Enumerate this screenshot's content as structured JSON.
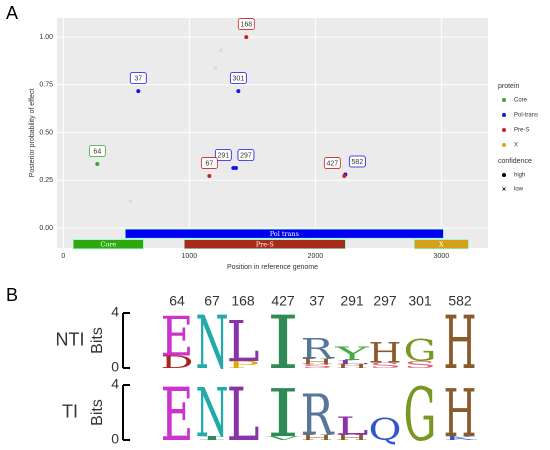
{
  "chart_data": [
    {
      "type": "scatter",
      "panel": "A",
      "xlabel": "Position in reference genome",
      "ylabel": "Posterior probability of effect",
      "xlim": [
        -50,
        3370
      ],
      "ylim": [
        -0.105,
        1.1
      ],
      "xticks": [
        0,
        1000,
        2000,
        3000
      ],
      "yticks": [
        {
          "value": 0,
          "label": "0.00"
        },
        0.25,
        {
          "value": 0.5,
          "label": "0.50"
        },
        0.75,
        {
          "value": 1,
          "label": "1.00"
        }
      ],
      "grid": true,
      "legend_title": "protein",
      "series": [
        {
          "name": "Core",
          "color": "#2fa82f",
          "x": [
            270
          ],
          "values": [
            0.335
          ],
          "labels": [
            "64"
          ],
          "confidence": [
            "high"
          ]
        },
        {
          "name": "Pol-trans",
          "color": "#1414e6",
          "x": [
            595,
            1389,
            1349,
            1370,
            2238,
            532,
            1250
          ],
          "values": [
            0.717,
            0.717,
            0.314,
            0.314,
            0.28,
            0.14,
            0.93
          ],
          "labels": [
            "37",
            "301",
            "291",
            "297",
            "582",
            null,
            null
          ],
          "confidence": [
            "high",
            "high",
            "high",
            "high",
            "high",
            "low",
            "low"
          ]
        },
        {
          "name": "Pre-S",
          "color": "#cc2222",
          "x": [
            1452,
            1159,
            2230,
            1206
          ],
          "values": [
            1.0,
            0.272,
            0.272,
            0.84
          ],
          "labels": [
            "168",
            "67",
            "427",
            null
          ],
          "confidence": [
            "high",
            "high",
            "high",
            "low"
          ]
        },
        {
          "name": "X",
          "color": "#daa520",
          "x": [],
          "values": [],
          "labels": [],
          "confidence": []
        }
      ],
      "confidence_legend": {
        "title": "confidence",
        "items": [
          "high",
          "low"
        ]
      },
      "genes": [
        {
          "name": "Pol trans",
          "start": 492,
          "end": 3016,
          "y": -0.03,
          "color": "#0000f0"
        },
        {
          "name": "Core",
          "start": 79,
          "end": 635,
          "y": -0.085,
          "color": "#2fa80f"
        },
        {
          "name": "Pre-S",
          "start": 960,
          "end": 2238,
          "y": -0.085,
          "color": "#a82a1a"
        },
        {
          "name": "X",
          "start": 2786,
          "end": 3214,
          "y": -0.085,
          "color": "#d4a017"
        }
      ]
    },
    {
      "type": "logo",
      "panel": "B",
      "categories": [
        "64",
        "67",
        "168",
        "427",
        "37",
        "291",
        "297",
        "301",
        "582"
      ],
      "category_colors": [
        "#44bb44",
        "#cc2222",
        "#cc2222",
        "#cc2222",
        "#1a3fcc",
        "#1a3fcc",
        "#1a3fcc",
        "#1a3fcc",
        "#1a3fcc"
      ],
      "ylabel": "Bits",
      "ylim": [
        0,
        4
      ],
      "yticks": [
        0,
        4
      ],
      "letter_colors": {
        "E": "#cc33cc",
        "D": "#aa2222",
        "N": "#22aaaa",
        "L": "#8833aa",
        "P": "#ddaa00",
        "I": "#2e8b57",
        "R": "#557799",
        "H": "#8b5a2b",
        "Y": "#44aa44",
        "S": "#dd6677",
        "G": "#779922",
        "Q": "#3355cc",
        "V": "#33aa66",
        "K": "#3355cc"
      },
      "rows": [
        {
          "name": "NTI",
          "columns": [
            [
              {
                "letter": "D",
                "bits": 0.9
              },
              {
                "letter": "E",
                "bits": 2.9
              }
            ],
            [
              {
                "letter": "N",
                "bits": 3.9
              }
            ],
            [
              {
                "letter": "P",
                "bits": 0.5
              },
              {
                "letter": "L",
                "bits": 3.0
              }
            ],
            [
              {
                "letter": "I",
                "bits": 3.9
              }
            ],
            [
              {
                "letter": "S",
                "bits": 0.3
              },
              {
                "letter": "H",
                "bits": 0.4
              },
              {
                "letter": "R",
                "bits": 1.5
              }
            ],
            [
              {
                "letter": "H",
                "bits": 0.3
              },
              {
                "letter": "L",
                "bits": 0.3
              },
              {
                "letter": "Y",
                "bits": 1.0
              }
            ],
            [
              {
                "letter": "S",
                "bits": 0.4
              },
              {
                "letter": "H",
                "bits": 1.5
              }
            ],
            [
              {
                "letter": "S",
                "bits": 0.5
              },
              {
                "letter": "G",
                "bits": 1.6
              }
            ],
            [
              {
                "letter": "H",
                "bits": 3.9
              }
            ]
          ]
        },
        {
          "name": "TI",
          "columns": [
            [
              {
                "letter": "E",
                "bits": 3.9
              }
            ],
            [
              {
                "letter": "I",
                "bits": 0.3
              },
              {
                "letter": "N",
                "bits": 3.6
              }
            ],
            [
              {
                "letter": "L",
                "bits": 3.9
              }
            ],
            [
              {
                "letter": "V",
                "bits": 0.3
              },
              {
                "letter": "I",
                "bits": 3.5
              }
            ],
            [
              {
                "letter": "H",
                "bits": 0.4
              },
              {
                "letter": "R",
                "bits": 3.0
              }
            ],
            [
              {
                "letter": "H",
                "bits": 0.4
              },
              {
                "letter": "L",
                "bits": 1.3
              }
            ],
            [
              {
                "letter": "Q",
                "bits": 1.6
              }
            ],
            [
              {
                "letter": "G",
                "bits": 3.9
              }
            ],
            [
              {
                "letter": "K",
                "bits": 0.3
              },
              {
                "letter": "H",
                "bits": 3.5
              }
            ]
          ]
        }
      ]
    }
  ]
}
